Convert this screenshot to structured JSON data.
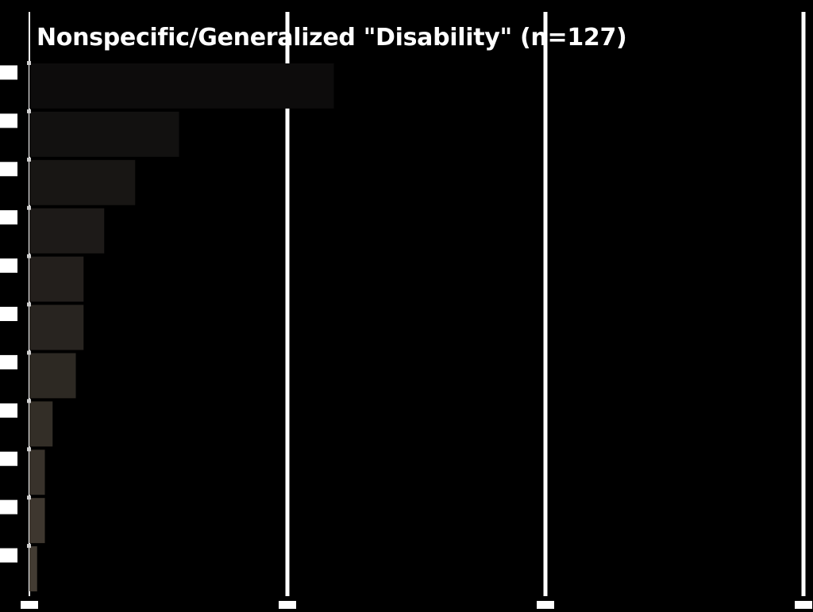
{
  "chart_data": {
    "type": "bar",
    "orientation": "horizontal",
    "title": "Nonspecific/Generalized \"Disability\"  (n=127)",
    "xlabel": "",
    "ylabel": "",
    "xlim": [
      0,
      30
    ],
    "values": [
      11.8,
      5.8,
      4.1,
      2.9,
      2.1,
      2.1,
      1.8,
      0.9,
      0.6,
      0.6,
      0.3
    ],
    "grid": true,
    "legend": "none",
    "colors": {
      "background": "#000000",
      "gridline": "#ffffff",
      "bar_dark": "#0d0c0c",
      "bar_light": "#433c33",
      "title": "#ffffff"
    }
  }
}
